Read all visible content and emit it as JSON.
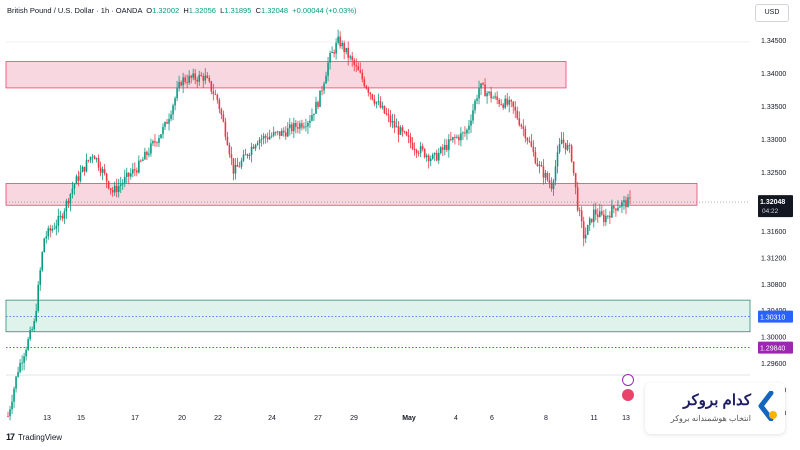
{
  "legend": {
    "symbol": "British Pound / U.S. Dollar · 1h · OANDA",
    "o_label": "O",
    "o_value": "1.32002",
    "h_label": "H",
    "h_value": "1.32056",
    "l_label": "L",
    "l_value": "1.31895",
    "c_label": "C",
    "c_value": "1.32048",
    "change": "+0.00044 (+0.03%)"
  },
  "currency_button": "USD",
  "price_tag": {
    "price": "1.32048",
    "countdown": "04:22"
  },
  "level_tags": [
    "1.30310",
    "1.29840"
  ],
  "watermark": {
    "text": "TradingView"
  },
  "brand": {
    "title": "کدام بروکر",
    "subtitle": "انتخاب هوشمندانه بروکر"
  },
  "colors": {
    "up": "#089981",
    "down": "#f23645",
    "resistance_zone": "#f8d7e0",
    "resistance_border": "#e8436b",
    "support_zone": "#dff2ec",
    "support_border": "#2e8b74",
    "level_tag_blue": "#2962ff",
    "level_tag_purple": "#9c27b0"
  },
  "chart_data": {
    "type": "candlestick",
    "y_axis": {
      "ticks": [
        1.345,
        1.34,
        1.335,
        1.33,
        1.325,
        1.3204,
        1.316,
        1.312,
        1.308,
        1.304,
        1.3,
        1.296,
        1.292,
        1.2885
      ],
      "tick_labels": [
        "1.34500",
        "1.34000",
        "1.33500",
        "1.33000",
        "1.32500",
        "1.32040",
        "1.31600",
        "1.31200",
        "1.30800",
        "1.30400",
        "1.30000",
        "1.29600",
        "1.29200",
        "1.28850"
      ],
      "range": [
        1.2865,
        1.3475
      ]
    },
    "x_axis": {
      "tick_labels": [
        "13",
        "15",
        "17",
        "20",
        "22",
        "24",
        "27",
        "29",
        "May",
        "4",
        "6",
        "8",
        "11",
        "13"
      ]
    },
    "zones": [
      {
        "kind": "resistance",
        "high": 1.3418,
        "low": 1.3378
      },
      {
        "kind": "resistance",
        "high": 1.3233,
        "low": 1.32
      },
      {
        "kind": "support",
        "high": 1.3056,
        "low": 1.3008
      }
    ],
    "levels": [
      {
        "price": 1.3031,
        "style": "dotted",
        "label": "1.30310"
      },
      {
        "price": 1.2984,
        "style": "dotted",
        "label": "1.29840"
      }
    ],
    "last_price": 1.32048,
    "path": [
      [
        0.0,
        1.288
      ],
      [
        0.015,
        1.295
      ],
      [
        0.04,
        1.302
      ],
      [
        0.055,
        1.315
      ],
      [
        0.08,
        1.318
      ],
      [
        0.1,
        1.323
      ],
      [
        0.13,
        1.328
      ],
      [
        0.16,
        1.322
      ],
      [
        0.2,
        1.326
      ],
      [
        0.24,
        1.332
      ],
      [
        0.265,
        1.339
      ],
      [
        0.3,
        1.3395
      ],
      [
        0.32,
        1.336
      ],
      [
        0.335,
        1.33
      ],
      [
        0.345,
        1.325
      ],
      [
        0.36,
        1.327
      ],
      [
        0.38,
        1.33
      ],
      [
        0.42,
        1.331
      ],
      [
        0.46,
        1.333
      ],
      [
        0.475,
        1.336
      ],
      [
        0.49,
        1.342
      ],
      [
        0.505,
        1.345
      ],
      [
        0.53,
        1.341
      ],
      [
        0.56,
        1.336
      ],
      [
        0.59,
        1.332
      ],
      [
        0.62,
        1.329
      ],
      [
        0.65,
        1.327
      ],
      [
        0.68,
        1.33
      ],
      [
        0.7,
        1.331
      ],
      [
        0.72,
        1.338
      ],
      [
        0.745,
        1.336
      ],
      [
        0.77,
        1.335
      ],
      [
        0.79,
        1.331
      ],
      [
        0.81,
        1.326
      ],
      [
        0.83,
        1.323
      ],
      [
        0.845,
        1.33
      ],
      [
        0.86,
        1.328
      ],
      [
        0.87,
        1.32
      ],
      [
        0.88,
        1.315
      ],
      [
        0.895,
        1.319
      ],
      [
        0.91,
        1.318
      ],
      [
        0.93,
        1.32
      ],
      [
        0.95,
        1.32048
      ]
    ]
  }
}
